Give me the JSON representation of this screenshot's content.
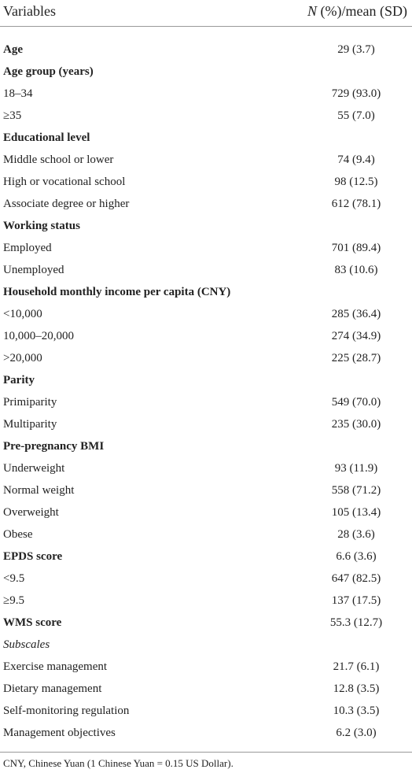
{
  "header": {
    "variable": "Variables",
    "value_symbol": "N",
    "value_rest": " (%)/mean (SD)"
  },
  "table": {
    "rows": [
      {
        "label": "Age",
        "value": "29 (3.7)",
        "style": "bold"
      },
      {
        "label": "Age group (years)",
        "style": "bold"
      },
      {
        "label": "18–34",
        "value": "729 (93.0)",
        "style": "normal"
      },
      {
        "label": "≥35",
        "value": "55 (7.0)",
        "style": "normal"
      },
      {
        "label": "Educational level",
        "style": "bold"
      },
      {
        "label": "Middle school or lower",
        "value": "74 (9.4)",
        "style": "normal"
      },
      {
        "label": "High or vocational school",
        "value": "98 (12.5)",
        "style": "normal"
      },
      {
        "label": "Associate degree or higher",
        "value": "612 (78.1)",
        "style": "normal"
      },
      {
        "label": "Working status",
        "style": "bold"
      },
      {
        "label": "Employed",
        "value": "701 (89.4)",
        "style": "normal"
      },
      {
        "label": "Unemployed",
        "value": "83 (10.6)",
        "style": "normal"
      },
      {
        "label": "Household monthly income per capita (CNY)",
        "style": "bold"
      },
      {
        "label": "<10,000",
        "value": "285 (36.4)",
        "style": "normal"
      },
      {
        "label": "10,000–20,000",
        "value": "274 (34.9)",
        "style": "normal"
      },
      {
        "label": ">20,000",
        "value": "225 (28.7)",
        "style": "normal"
      },
      {
        "label": "Parity",
        "style": "bold"
      },
      {
        "label": "Primiparity",
        "value": "549 (70.0)",
        "style": "normal"
      },
      {
        "label": "Multiparity",
        "value": "235 (30.0)",
        "style": "normal"
      },
      {
        "label": "Pre-pregnancy BMI",
        "style": "bold"
      },
      {
        "label": "Underweight",
        "value": "93 (11.9)",
        "style": "normal"
      },
      {
        "label": "Normal weight",
        "value": "558 (71.2)",
        "style": "normal"
      },
      {
        "label": "Overweight",
        "value": "105 (13.4)",
        "style": "normal"
      },
      {
        "label": "Obese",
        "value": "28 (3.6)",
        "style": "normal"
      },
      {
        "label": "EPDS score",
        "value": "6.6 (3.6)",
        "style": "bold"
      },
      {
        "label": "<9.5",
        "value": "647 (82.5)",
        "style": "normal"
      },
      {
        "label": "≥9.5",
        "value": "137 (17.5)",
        "style": "normal"
      },
      {
        "label": "WMS score",
        "value": "55.3 (12.7)",
        "style": "bold"
      },
      {
        "label": "Subscales",
        "style": "italic"
      },
      {
        "label": "Exercise management",
        "value": "21.7 (6.1)",
        "style": "normal"
      },
      {
        "label": "Dietary management",
        "value": "12.8 (3.5)",
        "style": "normal"
      },
      {
        "label": "Self-monitoring regulation",
        "value": "10.3 (3.5)",
        "style": "normal"
      },
      {
        "label": "Management objectives",
        "value": "6.2 (3.0)",
        "style": "normal"
      }
    ]
  },
  "footnote": "CNY, Chinese Yuan (1 Chinese Yuan = 0.15 US Dollar)."
}
